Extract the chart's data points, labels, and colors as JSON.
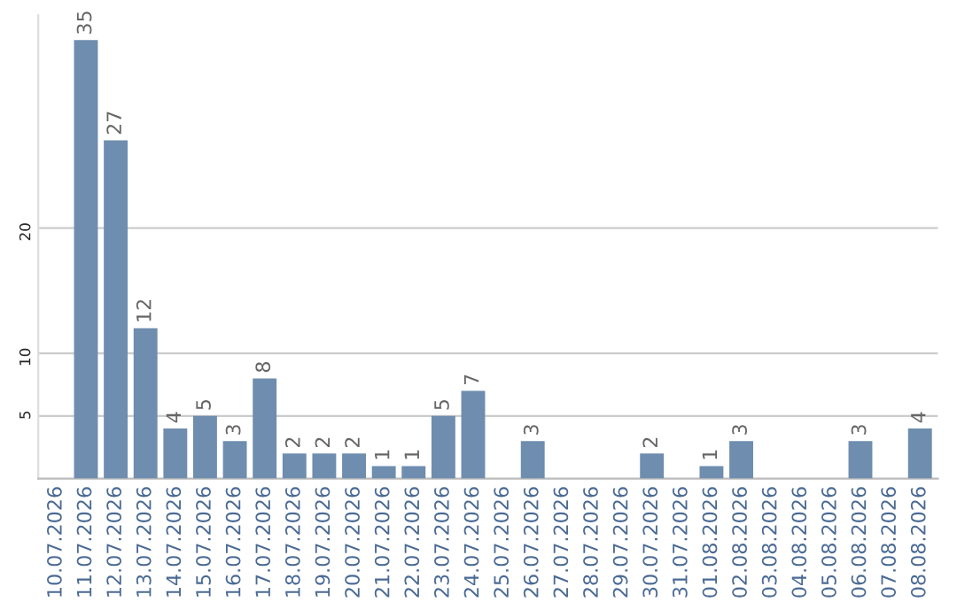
{
  "chart_data": {
    "type": "bar",
    "categories": [
      "10.07.2026",
      "11.07.2026",
      "12.07.2026",
      "13.07.2026",
      "14.07.2026",
      "15.07.2026",
      "16.07.2026",
      "17.07.2026",
      "18.07.2026",
      "19.07.2026",
      "20.07.2026",
      "21.07.2026",
      "22.07.2026",
      "23.07.2026",
      "24.07.2026",
      "25.07.2026",
      "26.07.2026",
      "27.07.2026",
      "28.07.2026",
      "29.07.2026",
      "30.07.2026",
      "31.07.2026",
      "01.08.2026",
      "02.08.2026",
      "03.08.2026",
      "04.08.2026",
      "05.08.2026",
      "06.08.2026",
      "07.08.2026",
      "08.08.2026"
    ],
    "values": [
      0,
      35,
      27,
      12,
      4,
      5,
      3,
      8,
      2,
      2,
      2,
      1,
      1,
      5,
      7,
      0,
      3,
      0,
      0,
      0,
      2,
      0,
      1,
      3,
      0,
      0,
      0,
      3,
      0,
      4
    ],
    "value_labels": [
      null,
      "35",
      "27",
      "12",
      "4",
      "5",
      "3",
      "8",
      "2",
      "2",
      "2",
      "1",
      "1",
      "5",
      "7",
      null,
      "3",
      null,
      null,
      null,
      "2",
      null,
      "1",
      "3",
      null,
      null,
      null,
      "3",
      null,
      "4"
    ],
    "color": "#6e8daf",
    "ylim": [
      0,
      37
    ],
    "yticks": [
      5,
      10,
      20
    ],
    "grid": "y"
  }
}
